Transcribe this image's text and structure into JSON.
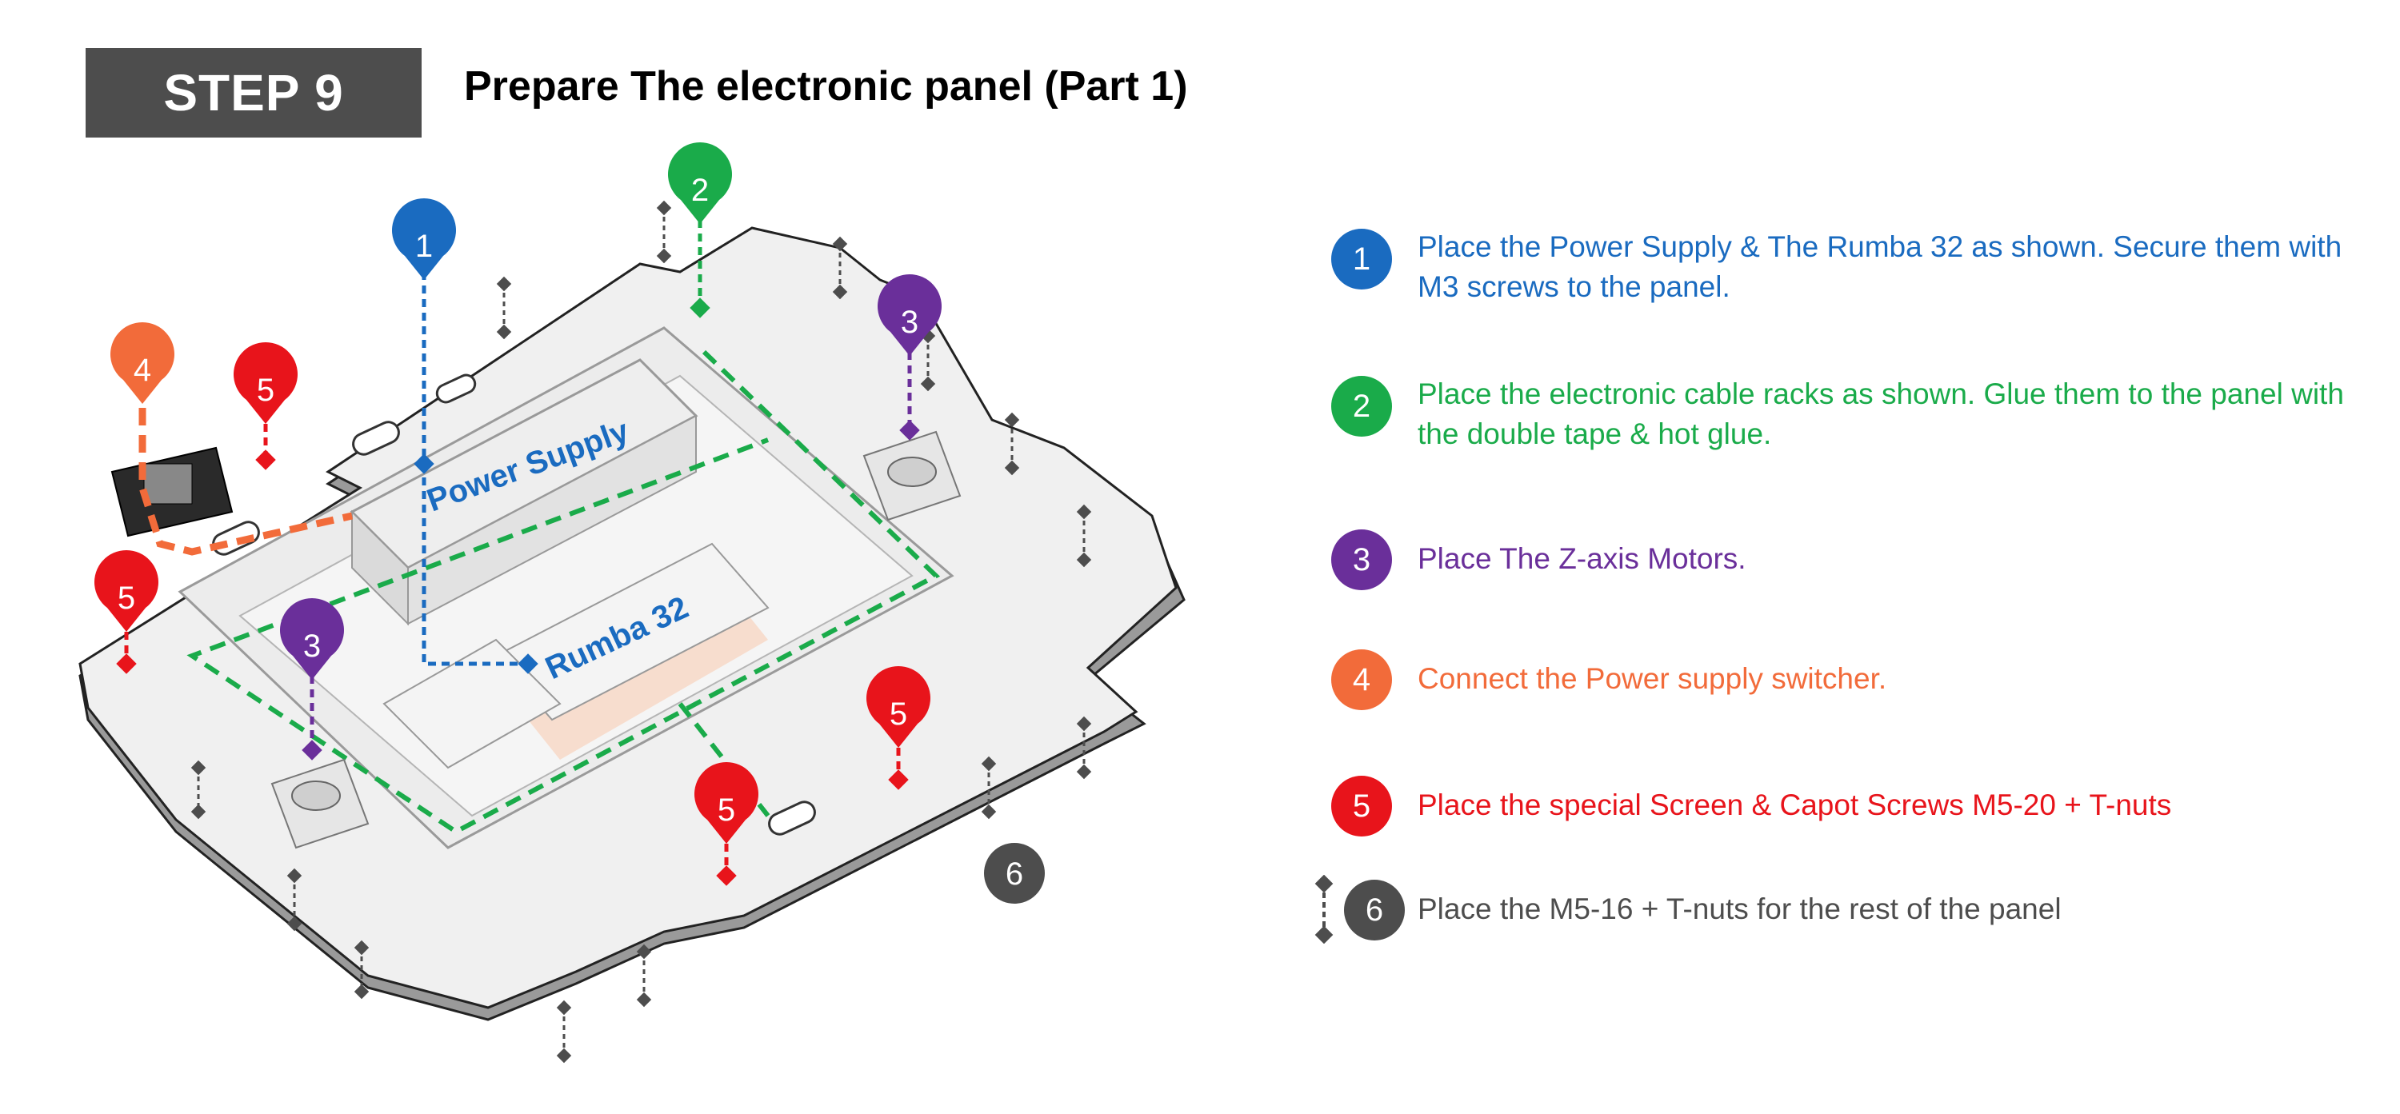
{
  "header": {
    "step_label": "STEP 9",
    "title": "Prepare The electronic panel (Part 1)"
  },
  "diagram": {
    "labels": {
      "power_supply": "Power Supply",
      "rumba": "Rumba 32"
    },
    "pins": [
      {
        "num": "1",
        "color": "#1a6bc0"
      },
      {
        "num": "2",
        "color": "#1aab4a"
      },
      {
        "num": "3",
        "color": "#6a2f9a"
      },
      {
        "num": "4",
        "color": "#f26b3a"
      },
      {
        "num": "5",
        "color": "#e8141b"
      },
      {
        "num": "6",
        "color": "#4d4d4d"
      }
    ]
  },
  "instructions": [
    {
      "num": "1",
      "color": "#1a6bc0",
      "text": "Place the Power Supply  & The Rumba 32 as shown. Secure them with M3 screws to the panel."
    },
    {
      "num": "2",
      "color": "#1aab4a",
      "text": "Place the electronic cable racks as shown. Glue them to the panel with the double tape & hot glue."
    },
    {
      "num": "3",
      "color": "#6a2f9a",
      "text": "Place The Z-axis Motors."
    },
    {
      "num": "4",
      "color": "#f26b3a",
      "text": "Connect the Power supply switcher."
    },
    {
      "num": "5",
      "color": "#e8141b",
      "text": "Place the special Screen & Capot Screws M5-20 + T-nuts"
    },
    {
      "num": "6",
      "color": "#4d4d4d",
      "text": "Place the M5-16 + T-nuts for the rest of the panel"
    }
  ]
}
